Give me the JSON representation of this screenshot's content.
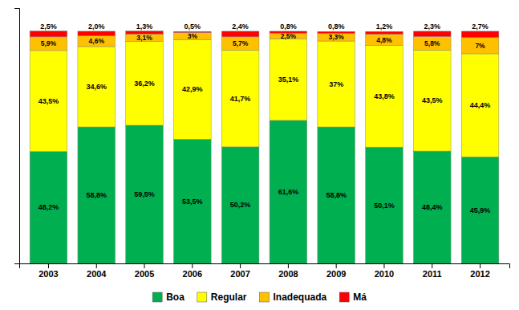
{
  "chart_data": {
    "type": "bar",
    "stacked": true,
    "data_labels": true,
    "grid": false,
    "legend": "bottom",
    "tick_labels": "x",
    "categories": [
      "2003",
      "2004",
      "2005",
      "2006",
      "2007",
      "2008",
      "2009",
      "2010",
      "2011",
      "2012"
    ],
    "ylim": [
      0,
      110
    ],
    "yticks": [],
    "series": [
      {
        "name": "Boa",
        "color": "#00b050",
        "values": [
          48.2,
          58.8,
          59.5,
          53.5,
          50.2,
          61.6,
          58.8,
          50.1,
          48.4,
          45.9
        ],
        "value_labels": [
          "48,2%",
          "58,8%",
          "59,5%",
          "53,5%",
          "50,2%",
          "61,6%",
          "58,8%",
          "50,1%",
          "48,4%",
          "45,9%"
        ]
      },
      {
        "name": "Regular",
        "color": "#ffff00",
        "values": [
          43.5,
          34.6,
          36.2,
          42.9,
          41.7,
          35.1,
          37.0,
          43.8,
          43.5,
          44.4
        ],
        "value_labels": [
          "43,5%",
          "34,6%",
          "36,2%",
          "42,9%",
          "41,7%",
          "35,1%",
          "37%",
          "43,8%",
          "43,5%",
          "44,4%"
        ]
      },
      {
        "name": "Inadequada",
        "color": "#ffc000",
        "values": [
          5.9,
          4.6,
          3.1,
          3.0,
          5.7,
          2.5,
          3.3,
          4.8,
          5.8,
          7.0
        ],
        "value_labels": [
          "5,9%",
          "4,6%",
          "3,1%",
          "3%",
          "5,7%",
          "2,5%",
          "3,3%",
          "4,8%",
          "5,8%",
          "7%"
        ]
      },
      {
        "name": "Má",
        "color": "#ff0000",
        "values": [
          2.5,
          2.0,
          1.3,
          0.5,
          2.4,
          0.8,
          0.8,
          1.2,
          2.3,
          2.7
        ],
        "value_labels": [
          "2,5%",
          "2,0%",
          "1,3%",
          "0,5%",
          "2,4%",
          "0,8%",
          "0,8%",
          "1,2%",
          "2,3%",
          "2,7%"
        ]
      }
    ]
  }
}
